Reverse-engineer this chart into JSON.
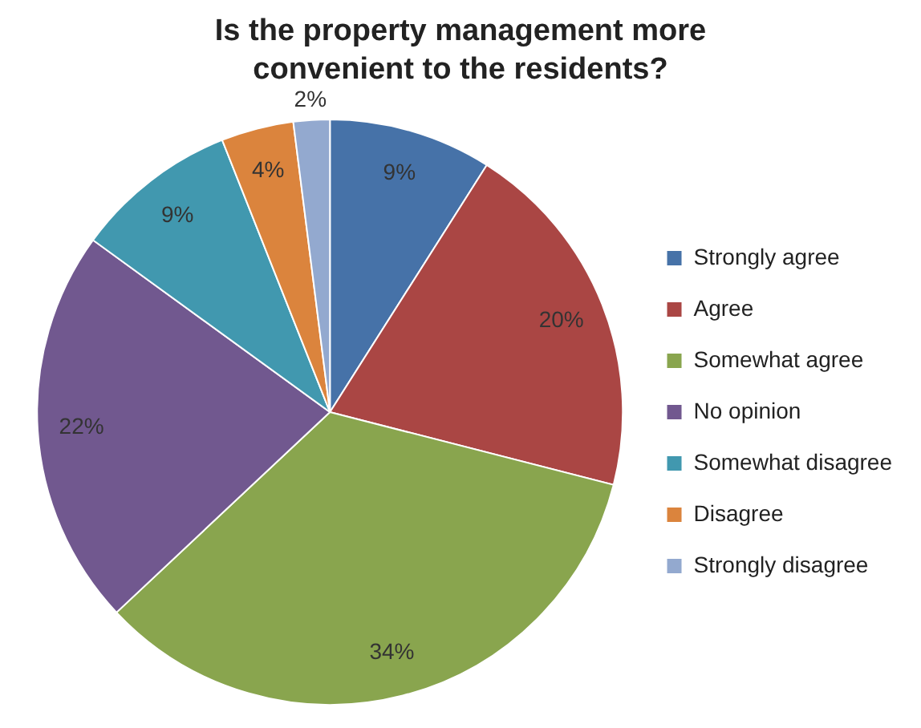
{
  "chart_data": {
    "type": "pie",
    "title": "Is the property management more convenient to the residents?",
    "categories": [
      "Strongly agree",
      "Agree",
      "Somewhat agree",
      "No opinion",
      "Somewhat disagree",
      "Disagree",
      "Strongly disagree"
    ],
    "values": [
      9,
      20,
      34,
      22,
      9,
      4,
      2
    ],
    "colors": [
      "#4672a8",
      "#aa4644",
      "#89a54e",
      "#71588f",
      "#4198af",
      "#db843d",
      "#93a9cf"
    ],
    "value_labels": [
      "9%",
      "20%",
      "34%",
      "22%",
      "9%",
      "4%",
      "2%"
    ],
    "legend": "right"
  }
}
